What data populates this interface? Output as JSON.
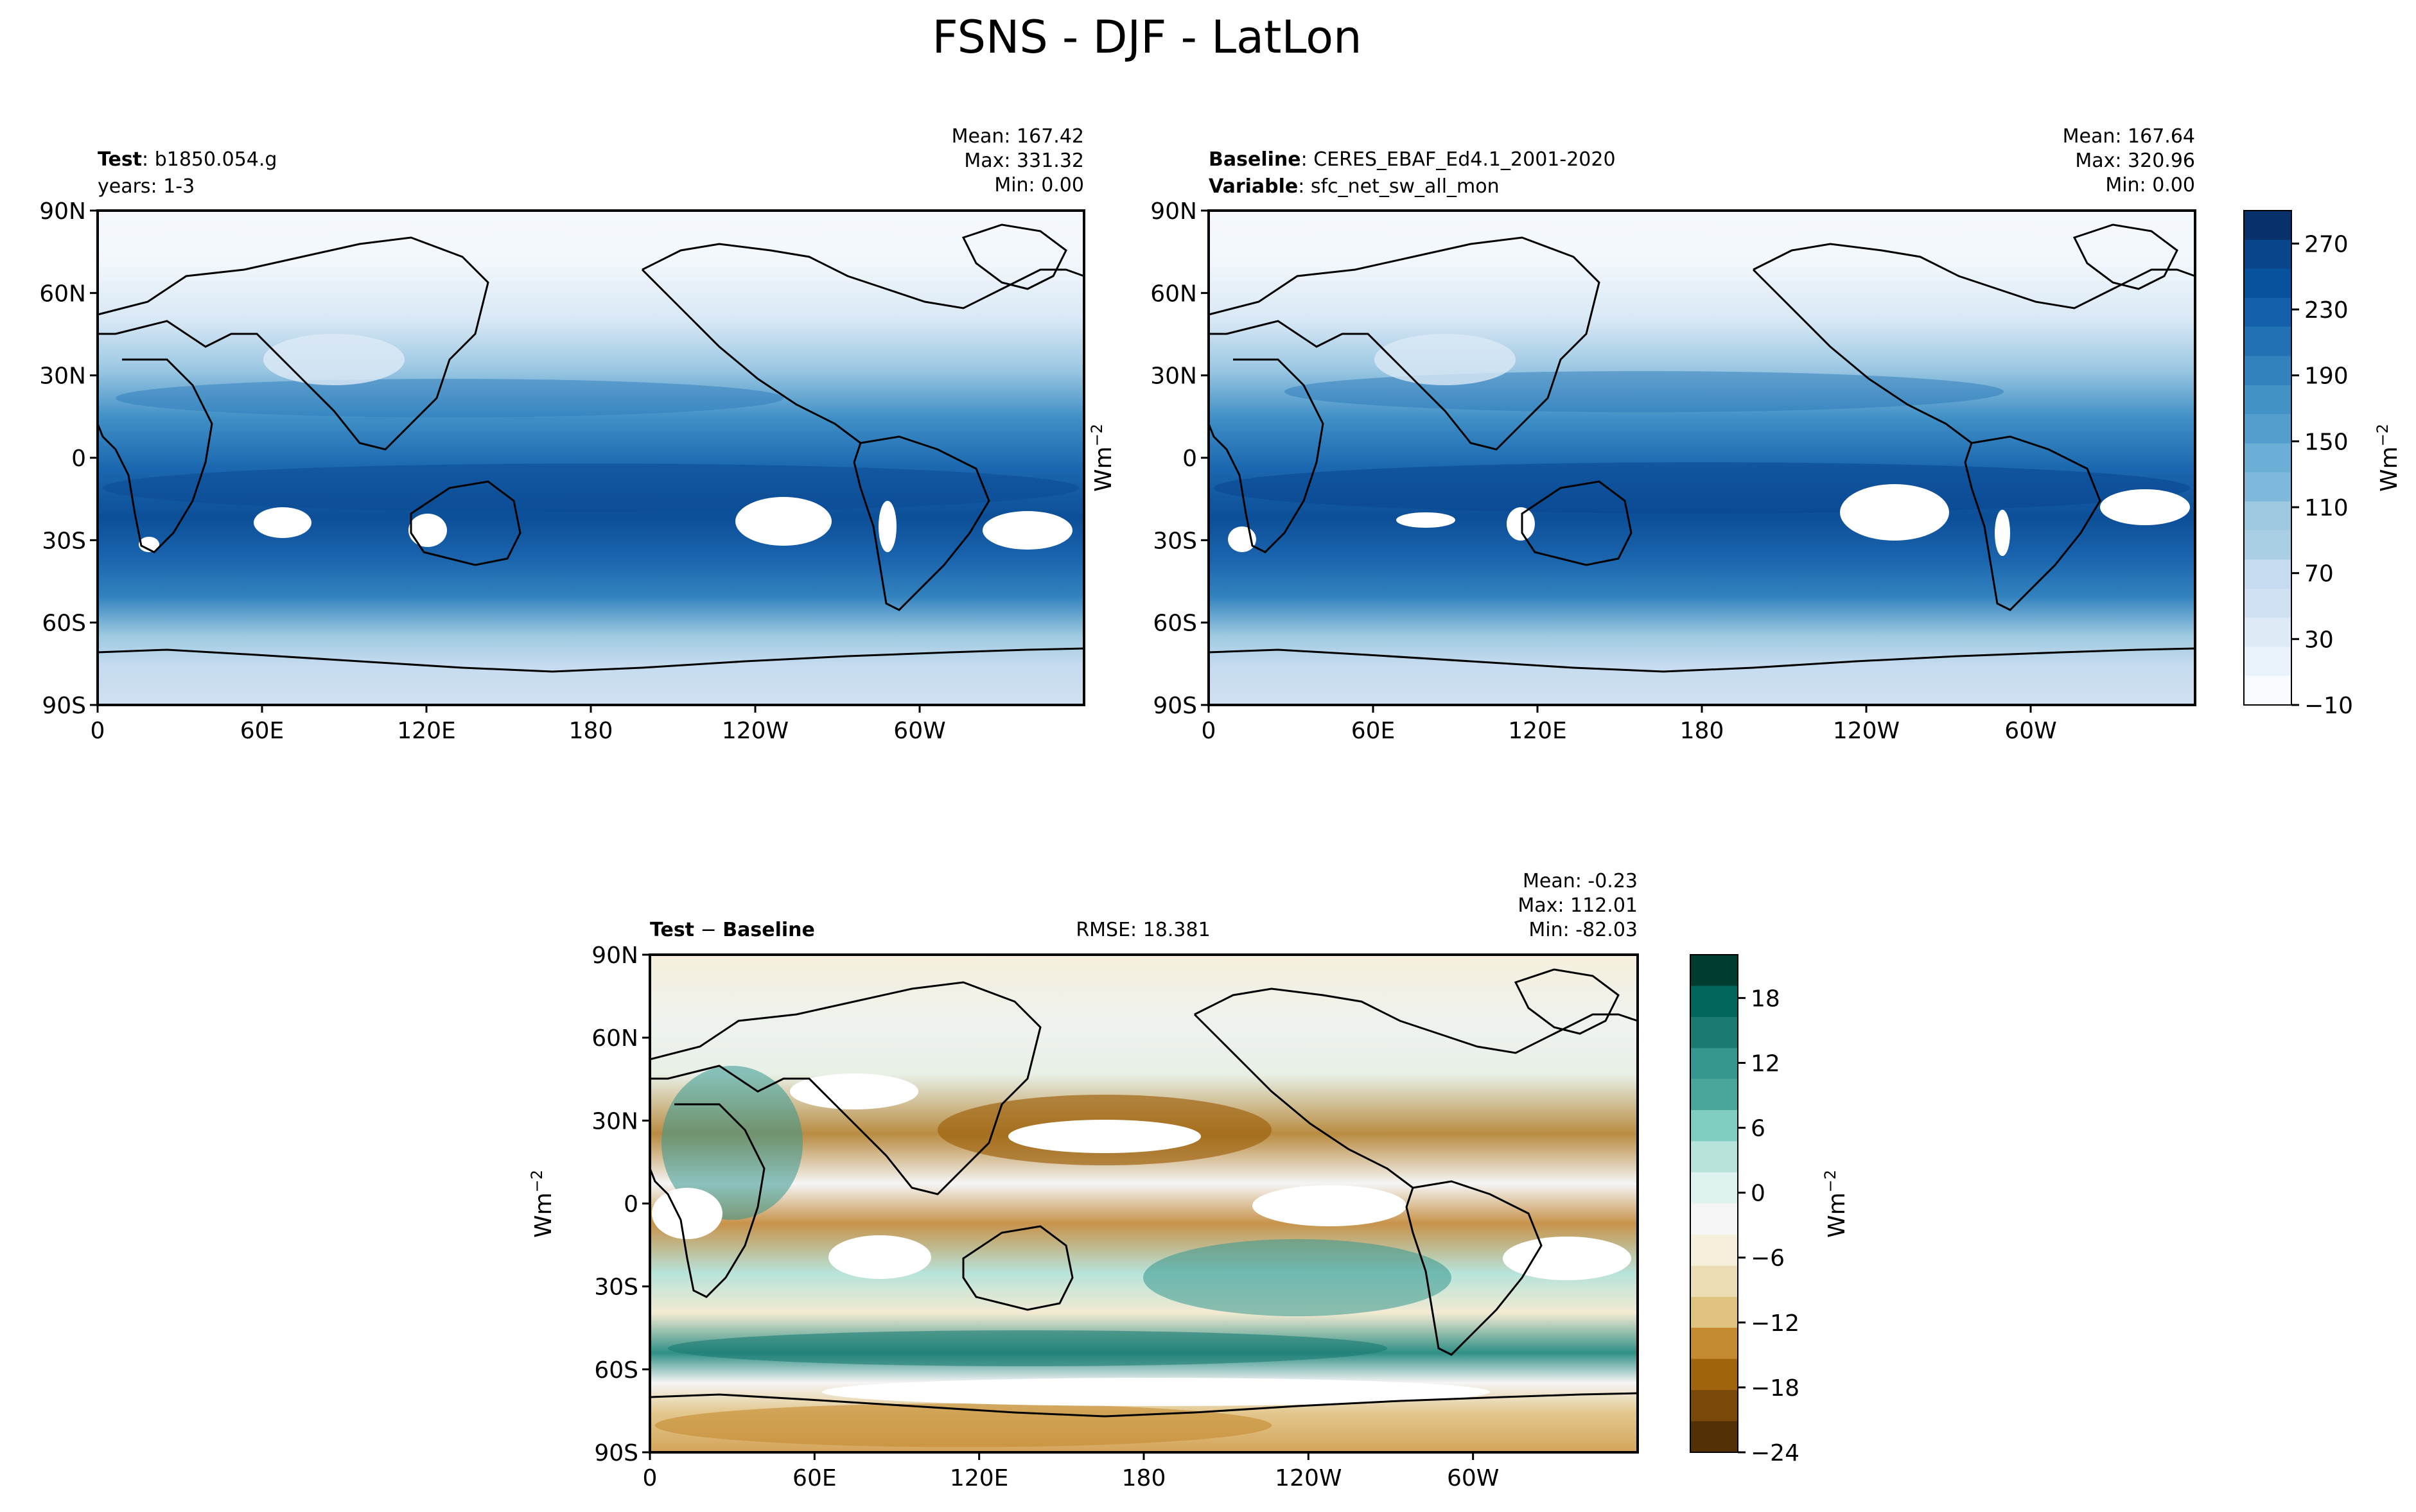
{
  "figure": {
    "title": "FSNS - DJF - LatLon"
  },
  "colors": {
    "land_outline": "#000000",
    "mask_fill": "#ffffff",
    "blues": [
      "#f7fbff",
      "#e9f2fb",
      "#deebf7",
      "#cfe1f2",
      "#c6dbef",
      "#aacfe5",
      "#9ecae1",
      "#7fb8da",
      "#6baed6",
      "#539ecd",
      "#4292c6",
      "#3282be",
      "#2171b5",
      "#1561a9",
      "#08519c",
      "#08458a",
      "#08306b"
    ],
    "diverging": [
      "#543005",
      "#7a4909",
      "#a0640f",
      "#c48a31",
      "#dfc27d",
      "#ecdcb4",
      "#f6efdc",
      "#f5f5f5",
      "#def3ef",
      "#b7e3da",
      "#80cdc1",
      "#4aa59b",
      "#35978f",
      "#1b7b73",
      "#01665e",
      "#003c30"
    ]
  },
  "chart_data": [
    {
      "type": "heatmap",
      "id": "test",
      "label_bold": "Test",
      "label_sep": ": ",
      "label_value": "b1850.054.g",
      "line2_plain": "years: 1-3",
      "stats": [
        "Mean: 167.42",
        "Max: 331.32",
        "Min:  0.00"
      ],
      "x_ticks": [
        "0",
        "60E",
        "120E",
        "180",
        "120W",
        "60W"
      ],
      "x_tick_values": [
        0,
        60,
        120,
        180,
        240,
        300
      ],
      "xlim": [
        0,
        360
      ],
      "y_ticks": [
        "90N",
        "60N",
        "30N",
        "0",
        "30S",
        "60S",
        "90S"
      ],
      "y_tick_values": [
        90,
        60,
        30,
        0,
        -30,
        -60,
        -90
      ],
      "ylim": [
        -90,
        90
      ],
      "ylabel": "",
      "colormap": "blues",
      "value_range": [
        -10,
        290
      ]
    },
    {
      "type": "heatmap",
      "id": "baseline",
      "label_bold": "Baseline",
      "label_sep": ": ",
      "label_value": "CERES_EBAF_Ed4.1_2001-2020",
      "line2_bold": "Variable",
      "line2_sep": ": ",
      "line2_value": "sfc_net_sw_all_mon",
      "stats": [
        "Mean: 167.64",
        "Max: 320.96",
        "Min:  0.00"
      ],
      "x_ticks": [
        "0",
        "60E",
        "120E",
        "180",
        "120W",
        "60W"
      ],
      "x_tick_values": [
        0,
        60,
        120,
        180,
        240,
        300
      ],
      "xlim": [
        0,
        360
      ],
      "y_ticks": [
        "90N",
        "60N",
        "30N",
        "0",
        "30S",
        "60S",
        "90S"
      ],
      "y_tick_values": [
        90,
        60,
        30,
        0,
        -30,
        -60,
        -90
      ],
      "ylim": [
        -90,
        90
      ],
      "ylabel": "Wm",
      "ylabel_sup": "−2",
      "colormap": "blues",
      "value_range": [
        -10,
        290
      ]
    },
    {
      "type": "heatmap",
      "id": "diff",
      "label_bold": "Test",
      "label_sep": " − ",
      "label_value": "Baseline",
      "center_text": "RMSE: 18.381",
      "stats": [
        "Mean: -0.23",
        "Max: 112.01",
        "Min: -82.03"
      ],
      "x_ticks": [
        "0",
        "60E",
        "120E",
        "180",
        "120W",
        "60W"
      ],
      "x_tick_values": [
        0,
        60,
        120,
        180,
        240,
        300
      ],
      "xlim": [
        0,
        360
      ],
      "y_ticks": [
        "90N",
        "60N",
        "30N",
        "0",
        "30S",
        "60S",
        "90S"
      ],
      "y_tick_values": [
        90,
        60,
        30,
        0,
        -30,
        -60,
        -90
      ],
      "ylim": [
        -90,
        90
      ],
      "ylabel": "Wm",
      "ylabel_sup": "−2",
      "colormap": "diverging",
      "value_range": [
        -24,
        22
      ]
    },
    {
      "type": "colorbar",
      "id": "cbar-top",
      "colormap": "blues",
      "range": [
        -10,
        290
      ],
      "ticks": [
        -10,
        30,
        70,
        110,
        150,
        190,
        230,
        270
      ],
      "tick_labels": [
        "−10",
        "30",
        "70",
        "110",
        "150",
        "190",
        "230",
        "270"
      ],
      "label": "Wm",
      "label_sup": "−2"
    },
    {
      "type": "colorbar",
      "id": "cbar-diff",
      "colormap": "diverging",
      "range": [
        -24,
        22
      ],
      "ticks": [
        -24,
        -18,
        -12,
        -6,
        0,
        6,
        12,
        18
      ],
      "tick_labels": [
        "−24",
        "−18",
        "−12",
        "−6",
        "0",
        "6",
        "12",
        "18"
      ],
      "label": "Wm",
      "label_sup": "−2"
    }
  ]
}
